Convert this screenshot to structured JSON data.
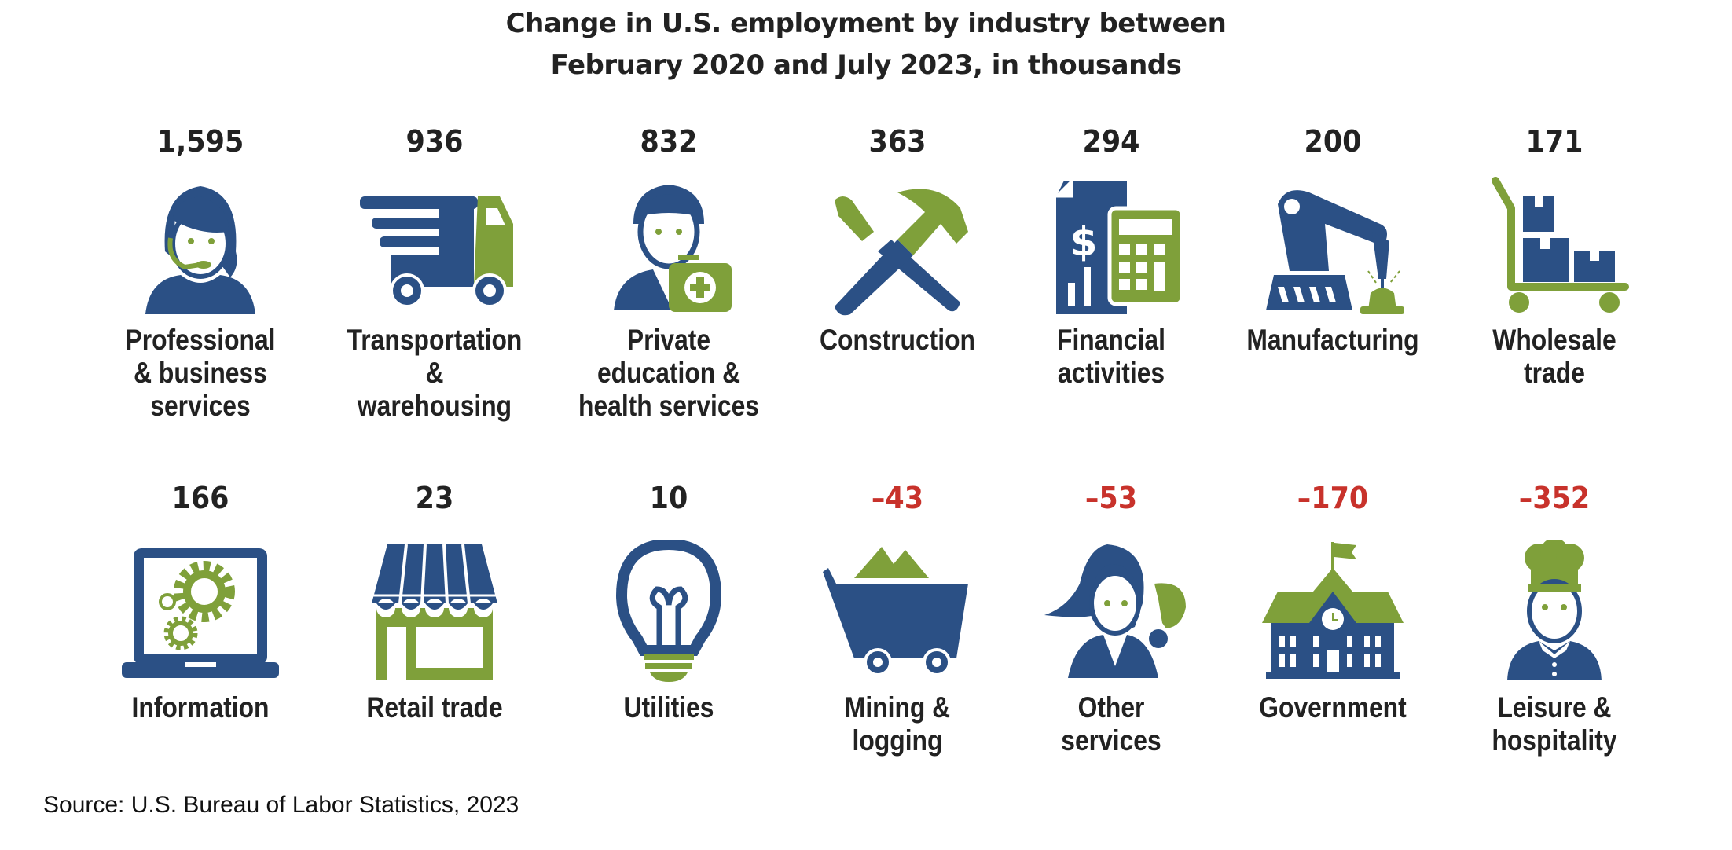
{
  "colors": {
    "blue": "#2b5085",
    "green": "#7fa03a",
    "negative": "#c8322b",
    "text": "#222222"
  },
  "chart_data": {
    "type": "table",
    "title": "Change in U.S. employment by industry between February 2020 and July 2023, in thousands",
    "title_lines": [
      "Change in U.S. employment by industry between",
      "February 2020 and July 2023, in thousands"
    ],
    "units": "thousands",
    "rows": [
      [
        {
          "value": 1595,
          "display": "1,595",
          "label_lines": [
            "Professional",
            "& business",
            "services"
          ],
          "icon": "call-center-agent-icon"
        },
        {
          "value": 936,
          "display": "936",
          "label_lines": [
            "Transportation",
            "&",
            "warehousing"
          ],
          "icon": "delivery-truck-icon"
        },
        {
          "value": 832,
          "display": "832",
          "label_lines": [
            "Private",
            "education &",
            "health services"
          ],
          "icon": "doctor-with-medical-kit-icon"
        },
        {
          "value": 363,
          "display": "363",
          "label_lines": [
            "Construction"
          ],
          "icon": "hammer-and-screwdriver-icon"
        },
        {
          "value": 294,
          "display": "294",
          "label_lines": [
            "Financial",
            "activities"
          ],
          "icon": "finance-document-calculator-icon"
        },
        {
          "value": 200,
          "display": "200",
          "label_lines": [
            "Manufacturing"
          ],
          "icon": "robotic-arm-icon"
        },
        {
          "value": 171,
          "display": "171",
          "label_lines": [
            "Wholesale",
            "trade"
          ],
          "icon": "hand-truck-boxes-icon"
        }
      ],
      [
        {
          "value": 166,
          "display": "166",
          "label_lines": [
            "Information"
          ],
          "icon": "laptop-gears-icon"
        },
        {
          "value": 23,
          "display": "23",
          "label_lines": [
            "Retail trade"
          ],
          "icon": "storefront-icon"
        },
        {
          "value": 10,
          "display": "10",
          "label_lines": [
            "Utilities"
          ],
          "icon": "light-bulb-icon"
        },
        {
          "value": -43,
          "display": "–43",
          "label_lines": [
            "Mining &",
            "logging"
          ],
          "icon": "mine-cart-icon"
        },
        {
          "value": -53,
          "display": "–53",
          "label_lines": [
            "Other",
            "services"
          ],
          "icon": "hairdresser-icon"
        },
        {
          "value": -170,
          "display": "–170",
          "label_lines": [
            "Government"
          ],
          "icon": "government-building-icon"
        },
        {
          "value": -352,
          "display": "–352",
          "label_lines": [
            "Leisure &",
            "hospitality"
          ],
          "icon": "chef-icon"
        }
      ]
    ]
  },
  "source": "Source: U.S. Bureau of Labor Statistics, 2023"
}
